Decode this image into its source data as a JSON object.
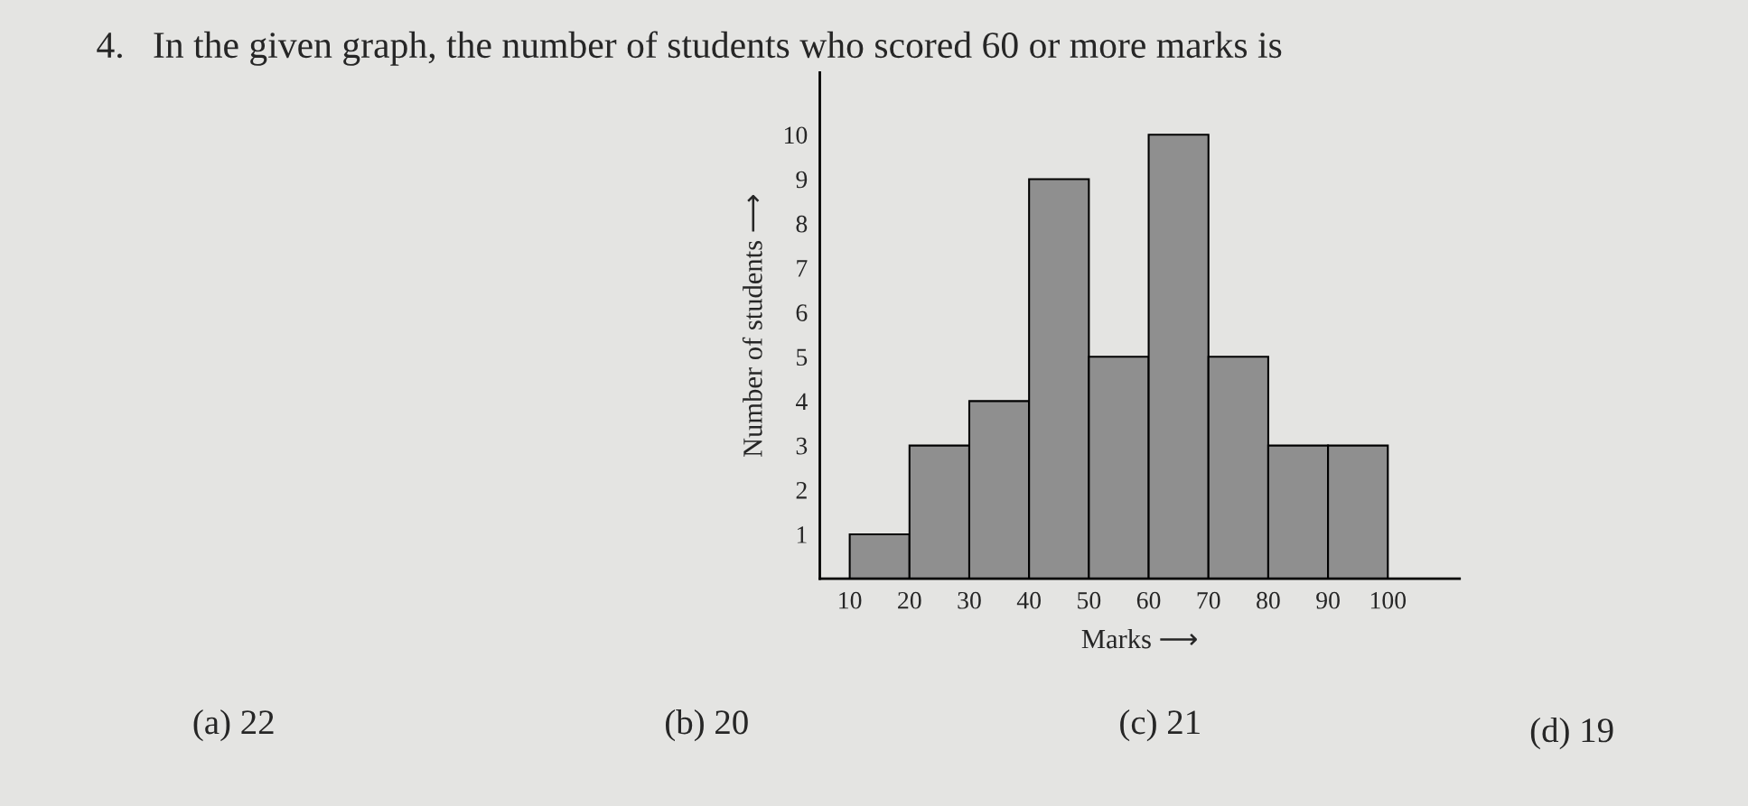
{
  "chart_data": {
    "type": "histogram",
    "title": "4.   In the given graph, the number of students who scored 60 or more marks is",
    "xlabel": "Marks ⟶",
    "ylabel": "Number of students ⟶",
    "bins": [
      10,
      20,
      30,
      40,
      50,
      60,
      70,
      80,
      90,
      100
    ],
    "values": [
      1,
      3,
      4,
      9,
      5,
      10,
      5,
      3,
      3
    ],
    "color": "#8f8f8f",
    "xlim": [
      5,
      112
    ],
    "ylim": [
      0,
      11.4
    ],
    "xticks": [
      10,
      20,
      30,
      40,
      50,
      60,
      70,
      80,
      90,
      100
    ],
    "yticks": [
      1,
      2,
      3,
      4,
      5,
      6,
      7,
      8,
      9,
      10
    ],
    "grid": false,
    "annotations": [
      "(a) 22",
      "(b) 20",
      "(c) 21",
      "(d) 19"
    ]
  }
}
